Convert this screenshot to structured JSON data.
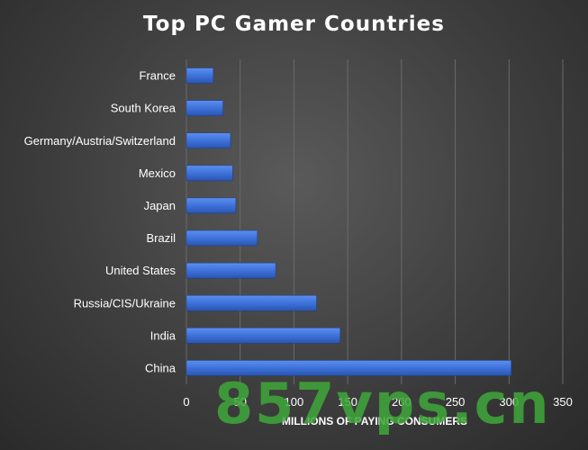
{
  "chart_data": {
    "type": "bar",
    "orientation": "horizontal",
    "title": "Top PC Gamer Countries",
    "categories": [
      "France",
      "South Korea",
      "Germany/Austria/Switzerland",
      "Mexico",
      "Japan",
      "Brazil",
      "United States",
      "Russia/CIS/Ukraine",
      "India",
      "China"
    ],
    "values": [
      25,
      34,
      41,
      43,
      46,
      66,
      83,
      121,
      143,
      302
    ],
    "xlabel": "MILLIONS OF PAYING CONSUMERS",
    "ylabel": "",
    "xlim": [
      0,
      350
    ],
    "xticks": [
      "0",
      "50",
      "100",
      "150",
      "200",
      "250",
      "300",
      "350"
    ],
    "grid": "vertical",
    "bar_color": "#3c6fd6"
  },
  "watermark": "857vps.cn"
}
